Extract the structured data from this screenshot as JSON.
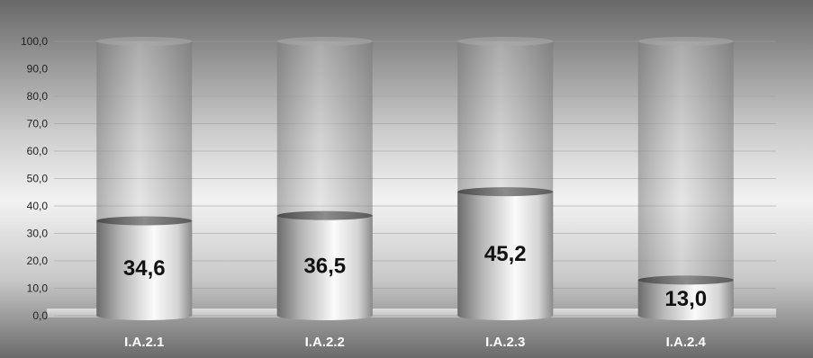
{
  "chart_data": {
    "type": "bar",
    "categories": [
      "I.A.2.1",
      "I.A.2.2",
      "I.A.2.3",
      "I.A.2.4"
    ],
    "values": [
      34.6,
      36.5,
      45.2,
      13.0
    ],
    "data_labels": [
      "34,6",
      "36,5",
      "45,2",
      "13,0"
    ],
    "y_ticks": [
      "0,0",
      "10,0",
      "20,0",
      "30,0",
      "40,0",
      "50,0",
      "60,0",
      "70,0",
      "80,0",
      "90,0",
      "100,0"
    ],
    "ylim": [
      0,
      100
    ],
    "title": "",
    "xlabel": "",
    "ylabel": "",
    "grid": true,
    "style": "3d-cylinder",
    "colors": {
      "background_top": "#6a6a6a",
      "background_mid": "#f0f0f0",
      "background_bottom": "#6f6f6f",
      "bar_light": "#f8f8f8",
      "bar_dark": "#777777",
      "track": "#9a9a9a",
      "gridline": "#b8b8b8",
      "text": "#1a1a1a",
      "category_text": "#ffffff"
    }
  }
}
